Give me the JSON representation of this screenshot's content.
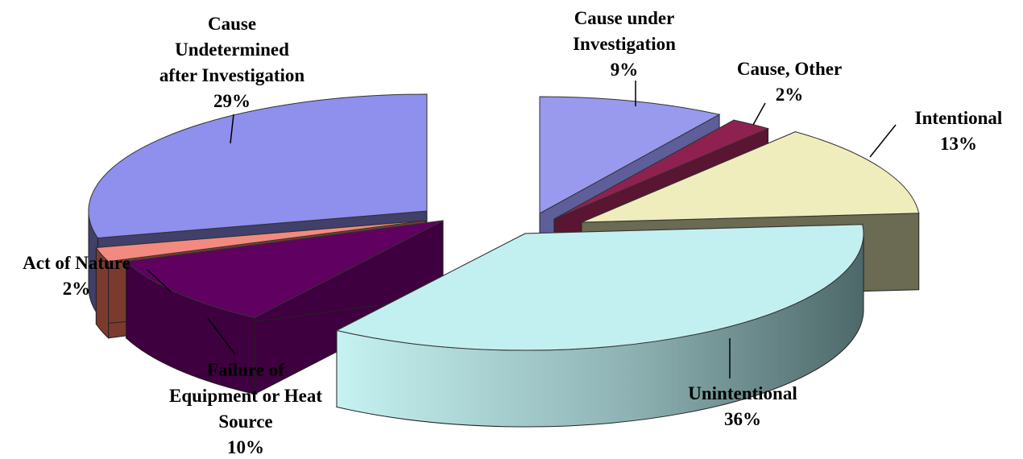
{
  "chart_data": {
    "type": "pie",
    "style": "3d-exploded",
    "title": "",
    "slices": [
      {
        "label": "Cause under Investigation",
        "value": 9,
        "value_label": "9%",
        "top": "#9999ee",
        "side": "#5e5e9a"
      },
      {
        "label": "Cause, Other",
        "value": 2,
        "value_label": "2%",
        "top": "#8f2150",
        "side": "#5a1533"
      },
      {
        "label": "Intentional",
        "value": 13,
        "value_label": "13%",
        "top": "#efedbb",
        "side": "#6b6a52"
      },
      {
        "label": "Unintentional",
        "value": 36,
        "value_label": "36%",
        "top": "#c2f0f0",
        "side": "#7aa2a3"
      },
      {
        "label": "Failure of Equipment or Heat Source",
        "value": 10,
        "value_label": "10%",
        "top": "#600060",
        "side": "#3e003e"
      },
      {
        "label": "Act of Nature",
        "value": 2,
        "value_label": "2%",
        "top": "#f28a80",
        "side": "#7a3b2e"
      },
      {
        "label": "Cause Undetermined after Investigation",
        "value": 29,
        "value_label": "29%",
        "top": "#8f8fee",
        "side": "#40406a"
      }
    ],
    "label_lines": [
      [
        "Cause under",
        "Investigation",
        "9%"
      ],
      [
        "Cause, Other",
        "2%"
      ],
      [
        "Intentional",
        "13%"
      ],
      [
        "Unintentional",
        "36%"
      ],
      [
        "Failure of",
        "Equipment or Heat",
        "Source",
        "10%"
      ],
      [
        "Act of Nature",
        "2%"
      ],
      [
        "Cause",
        "Undetermined",
        "after Investigation",
        "29%"
      ]
    ]
  }
}
